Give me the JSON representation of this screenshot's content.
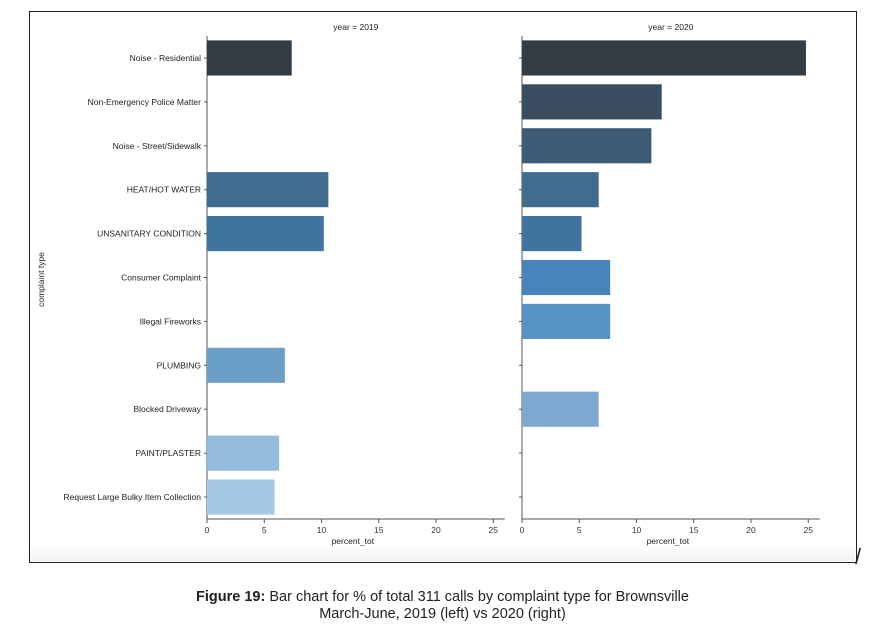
{
  "chart_data": {
    "type": "bar",
    "orientation": "horizontal",
    "ylabel": "complaint type",
    "xlabel": "percent_tot",
    "xlim": [
      0,
      26
    ],
    "xticks": [
      0,
      5,
      10,
      15,
      20,
      25
    ],
    "categories": [
      "Noise - Residential",
      "Non-Emergency Police Matter",
      "Noise - Street/Sidewalk",
      "HEAT/HOT WATER",
      "UNSANITARY CONDITION",
      "Consumer Complaint",
      "Illegal Fireworks",
      "PLUMBING",
      "Blocked Driveway",
      "PAINT/PLASTER",
      "Request Large Bulky Item Collection"
    ],
    "colors": [
      "#343d45",
      "#3a4d5e",
      "#3e5c74",
      "#406c8d",
      "#4073a0",
      "#4883bb",
      "#5693c4",
      "#6c9fc8",
      "#7ba9cf",
      "#93bbdc",
      "#a6c8e2"
    ],
    "panels": [
      {
        "title": "year = 2019",
        "values": [
          7.4,
          null,
          null,
          10.6,
          10.2,
          null,
          null,
          6.8,
          null,
          6.3,
          5.9
        ]
      },
      {
        "title": "year = 2020",
        "values": [
          24.8,
          12.2,
          11.3,
          6.7,
          5.2,
          7.7,
          7.7,
          null,
          6.7,
          null,
          null
        ]
      }
    ]
  },
  "caption": {
    "label": "Figure 19:",
    "line1": " Bar chart for % of total 311 calls by complaint type for Brownsville",
    "line2": "March-June, 2019 (left) vs 2020 (right)"
  },
  "stray_mark": "/"
}
